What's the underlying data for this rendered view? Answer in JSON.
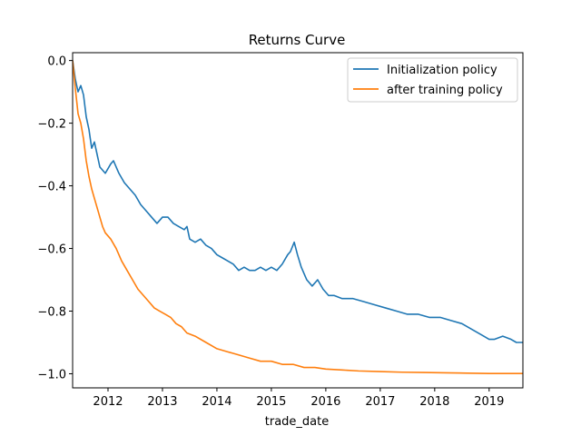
{
  "chart_data": {
    "type": "line",
    "title": "Returns Curve",
    "xlabel": "trade_date",
    "ylabel": "",
    "xlim": [
      2011.35,
      2019.62
    ],
    "ylim": [
      -1.045,
      0.025
    ],
    "grid": false,
    "legend_position": "top-right",
    "x_ticks": [
      {
        "value": 2012,
        "label": "2012"
      },
      {
        "value": 2013,
        "label": "2013"
      },
      {
        "value": 2014,
        "label": "2014"
      },
      {
        "value": 2015,
        "label": "2015"
      },
      {
        "value": 2016,
        "label": "2016"
      },
      {
        "value": 2017,
        "label": "2017"
      },
      {
        "value": 2018,
        "label": "2018"
      },
      {
        "value": 2019,
        "label": "2019"
      }
    ],
    "y_ticks": [
      {
        "value": 0.0,
        "label": "0.0"
      },
      {
        "value": -0.2,
        "label": "−0.2"
      },
      {
        "value": -0.4,
        "label": "−0.4"
      },
      {
        "value": -0.6,
        "label": "−0.6"
      },
      {
        "value": -0.8,
        "label": "−0.8"
      },
      {
        "value": -1.0,
        "label": "−1.0"
      }
    ],
    "series": [
      {
        "name": "Initialization policy",
        "color": "#1f77b4",
        "points": [
          [
            2011.35,
            0.0
          ],
          [
            2011.4,
            -0.06
          ],
          [
            2011.45,
            -0.1
          ],
          [
            2011.5,
            -0.08
          ],
          [
            2011.55,
            -0.11
          ],
          [
            2011.6,
            -0.18
          ],
          [
            2011.65,
            -0.22
          ],
          [
            2011.7,
            -0.28
          ],
          [
            2011.75,
            -0.26
          ],
          [
            2011.8,
            -0.3
          ],
          [
            2011.85,
            -0.34
          ],
          [
            2011.95,
            -0.36
          ],
          [
            2012.05,
            -0.33
          ],
          [
            2012.1,
            -0.32
          ],
          [
            2012.2,
            -0.36
          ],
          [
            2012.3,
            -0.39
          ],
          [
            2012.4,
            -0.41
          ],
          [
            2012.5,
            -0.43
          ],
          [
            2012.6,
            -0.46
          ],
          [
            2012.7,
            -0.48
          ],
          [
            2012.8,
            -0.5
          ],
          [
            2012.9,
            -0.52
          ],
          [
            2013.0,
            -0.5
          ],
          [
            2013.1,
            -0.5
          ],
          [
            2013.2,
            -0.52
          ],
          [
            2013.3,
            -0.53
          ],
          [
            2013.4,
            -0.54
          ],
          [
            2013.45,
            -0.53
          ],
          [
            2013.5,
            -0.57
          ],
          [
            2013.6,
            -0.58
          ],
          [
            2013.7,
            -0.57
          ],
          [
            2013.8,
            -0.59
          ],
          [
            2013.9,
            -0.6
          ],
          [
            2014.0,
            -0.62
          ],
          [
            2014.1,
            -0.63
          ],
          [
            2014.2,
            -0.64
          ],
          [
            2014.3,
            -0.65
          ],
          [
            2014.4,
            -0.67
          ],
          [
            2014.5,
            -0.66
          ],
          [
            2014.6,
            -0.67
          ],
          [
            2014.7,
            -0.67
          ],
          [
            2014.8,
            -0.66
          ],
          [
            2014.9,
            -0.67
          ],
          [
            2015.0,
            -0.66
          ],
          [
            2015.1,
            -0.67
          ],
          [
            2015.2,
            -0.65
          ],
          [
            2015.3,
            -0.62
          ],
          [
            2015.35,
            -0.61
          ],
          [
            2015.42,
            -0.58
          ],
          [
            2015.48,
            -0.62
          ],
          [
            2015.55,
            -0.66
          ],
          [
            2015.65,
            -0.7
          ],
          [
            2015.75,
            -0.72
          ],
          [
            2015.85,
            -0.7
          ],
          [
            2015.95,
            -0.73
          ],
          [
            2016.05,
            -0.75
          ],
          [
            2016.15,
            -0.75
          ],
          [
            2016.3,
            -0.76
          ],
          [
            2016.5,
            -0.76
          ],
          [
            2016.7,
            -0.77
          ],
          [
            2016.9,
            -0.78
          ],
          [
            2017.1,
            -0.79
          ],
          [
            2017.3,
            -0.8
          ],
          [
            2017.5,
            -0.81
          ],
          [
            2017.7,
            -0.81
          ],
          [
            2017.9,
            -0.82
          ],
          [
            2018.1,
            -0.82
          ],
          [
            2018.3,
            -0.83
          ],
          [
            2018.5,
            -0.84
          ],
          [
            2018.7,
            -0.86
          ],
          [
            2018.9,
            -0.88
          ],
          [
            2019.0,
            -0.89
          ],
          [
            2019.1,
            -0.89
          ],
          [
            2019.25,
            -0.88
          ],
          [
            2019.4,
            -0.89
          ],
          [
            2019.5,
            -0.9
          ],
          [
            2019.62,
            -0.9
          ]
        ]
      },
      {
        "name": "after training policy",
        "color": "#ff7f0e",
        "points": [
          [
            2011.35,
            0.0
          ],
          [
            2011.4,
            -0.09
          ],
          [
            2011.45,
            -0.17
          ],
          [
            2011.5,
            -0.2
          ],
          [
            2011.55,
            -0.25
          ],
          [
            2011.6,
            -0.32
          ],
          [
            2011.65,
            -0.37
          ],
          [
            2011.7,
            -0.41
          ],
          [
            2011.75,
            -0.44
          ],
          [
            2011.8,
            -0.47
          ],
          [
            2011.85,
            -0.5
          ],
          [
            2011.9,
            -0.53
          ],
          [
            2011.95,
            -0.55
          ],
          [
            2012.05,
            -0.57
          ],
          [
            2012.15,
            -0.6
          ],
          [
            2012.25,
            -0.64
          ],
          [
            2012.35,
            -0.67
          ],
          [
            2012.45,
            -0.7
          ],
          [
            2012.55,
            -0.73
          ],
          [
            2012.65,
            -0.75
          ],
          [
            2012.75,
            -0.77
          ],
          [
            2012.85,
            -0.79
          ],
          [
            2012.95,
            -0.8
          ],
          [
            2013.05,
            -0.81
          ],
          [
            2013.15,
            -0.82
          ],
          [
            2013.25,
            -0.84
          ],
          [
            2013.35,
            -0.85
          ],
          [
            2013.45,
            -0.87
          ],
          [
            2013.6,
            -0.88
          ],
          [
            2013.8,
            -0.9
          ],
          [
            2014.0,
            -0.92
          ],
          [
            2014.2,
            -0.93
          ],
          [
            2014.4,
            -0.94
          ],
          [
            2014.6,
            -0.95
          ],
          [
            2014.8,
            -0.96
          ],
          [
            2015.0,
            -0.96
          ],
          [
            2015.2,
            -0.97
          ],
          [
            2015.4,
            -0.97
          ],
          [
            2015.6,
            -0.98
          ],
          [
            2015.8,
            -0.98
          ],
          [
            2016.0,
            -0.985
          ],
          [
            2016.3,
            -0.988
          ],
          [
            2016.6,
            -0.991
          ],
          [
            2017.0,
            -0.993
          ],
          [
            2017.4,
            -0.995
          ],
          [
            2017.8,
            -0.996
          ],
          [
            2018.2,
            -0.997
          ],
          [
            2018.6,
            -0.998
          ],
          [
            2019.0,
            -0.999
          ],
          [
            2019.3,
            -0.999
          ],
          [
            2019.62,
            -0.999
          ]
        ]
      }
    ]
  }
}
